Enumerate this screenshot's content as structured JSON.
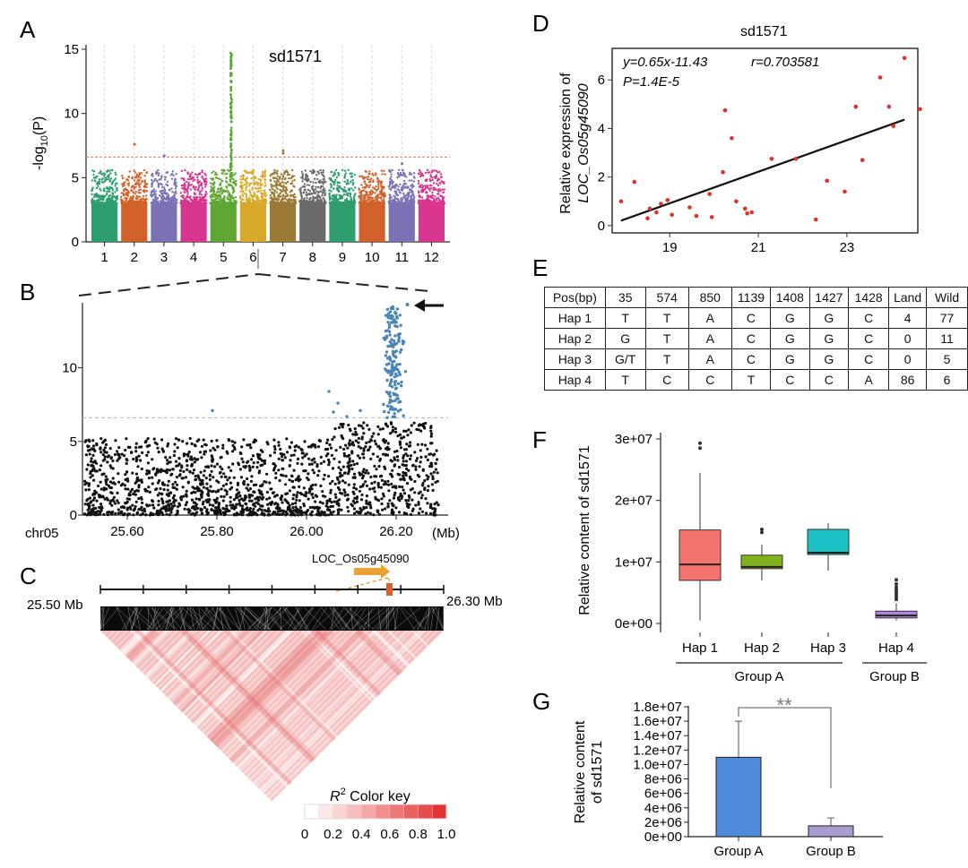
{
  "panel_labels": [
    "A",
    "B",
    "C",
    "D",
    "E",
    "F",
    "G"
  ],
  "panel_a": {
    "title": "sd1571",
    "ylabel_prefix": "-log",
    "ylabel_sub": "10",
    "ylabel_suffix": "(P)",
    "yticks": [
      "15",
      "10",
      "5",
      "0"
    ],
    "chromosomes": [
      "1",
      "2",
      "3",
      "4",
      "5",
      "6",
      "7",
      "8",
      "9",
      "10",
      "11",
      "12"
    ],
    "colors": [
      "#2e9e6e",
      "#d2622a",
      "#7b72b6",
      "#d8358f",
      "#5fa632",
      "#d8a928",
      "#9a7a33",
      "#6a6a6a",
      "#2e9e6e",
      "#d2622a",
      "#7b72b6",
      "#d8358f"
    ],
    "threshold": 6.6
  },
  "panel_b": {
    "yticks": [
      "10",
      "5",
      "0"
    ],
    "xtick_labels": [
      "25.60",
      "25.80",
      "26.00",
      "26.20"
    ],
    "chr_label": "chr05",
    "unit_label": "(Mb)",
    "threshold": 6.6,
    "sig_color": "#4a86b8"
  },
  "panel_c": {
    "gene_label": "LOC_Os05g45090",
    "left_label": "25.50 Mb",
    "right_label": "26.30 Mb",
    "key_title_base": "R",
    "key_title_sup": "2",
    "key_title_rest": " Color key",
    "key_ticks": [
      "0",
      "0.2",
      "0.4",
      "0.6",
      "0.8",
      "1.0"
    ]
  },
  "chart_data": [
    {
      "type": "scatter",
      "panel": "D",
      "title": "sd1571",
      "xlabel": "",
      "ylabel_line1": "Relative expression of",
      "ylabel_line2": "LOC_Os05g45090",
      "equation": "y=0.65x-11.43",
      "r_text": "r=0.703581",
      "p_text": "P=1.4E-5",
      "xticks": [
        "19",
        "21",
        "23"
      ],
      "yticks": [
        "0",
        "2",
        "4",
        "6"
      ],
      "xlim": [
        17.7,
        24.6
      ],
      "ylim": [
        -0.3,
        7.3
      ],
      "fit": {
        "slope": 0.65,
        "intercept": -11.43,
        "x_range": [
          17.9,
          24.3
        ]
      },
      "point_color": "#e0302a",
      "points": [
        [
          17.9,
          1.0
        ],
        [
          18.2,
          1.8
        ],
        [
          18.5,
          0.3
        ],
        [
          18.55,
          0.7
        ],
        [
          18.7,
          0.55
        ],
        [
          18.8,
          0.9
        ],
        [
          18.95,
          1.05
        ],
        [
          19.05,
          0.45
        ],
        [
          19.45,
          0.75
        ],
        [
          19.6,
          0.4
        ],
        [
          19.9,
          1.3
        ],
        [
          19.95,
          0.35
        ],
        [
          20.2,
          2.2
        ],
        [
          20.25,
          4.75
        ],
        [
          20.4,
          3.6
        ],
        [
          20.5,
          1.0
        ],
        [
          20.7,
          0.7
        ],
        [
          20.75,
          0.5
        ],
        [
          20.85,
          0.55
        ],
        [
          21.3,
          2.75
        ],
        [
          21.85,
          2.75
        ],
        [
          22.3,
          0.25
        ],
        [
          22.55,
          1.85
        ],
        [
          22.95,
          1.4
        ],
        [
          23.2,
          4.9
        ],
        [
          23.35,
          2.7
        ],
        [
          23.75,
          6.1
        ],
        [
          23.95,
          4.9
        ],
        [
          24.05,
          4.1
        ],
        [
          24.3,
          6.9
        ],
        [
          24.65,
          4.8
        ]
      ]
    },
    {
      "type": "table",
      "panel": "E",
      "columns": [
        "Pos(bp)",
        "35",
        "574",
        "850",
        "1139",
        "1408",
        "1427",
        "1428",
        "Land",
        "Wild"
      ],
      "rows": [
        [
          "Hap 1",
          "T",
          "T",
          "A",
          "C",
          "G",
          "G",
          "C",
          "4",
          "77"
        ],
        [
          "Hap 2",
          "G",
          "T",
          "A",
          "C",
          "G",
          "G",
          "C",
          "0",
          "11"
        ],
        [
          "Hap 3",
          "G/T",
          "T",
          "A",
          "C",
          "G",
          "G",
          "C",
          "0",
          "5"
        ],
        [
          "Hap 4",
          "T",
          "C",
          "C",
          "T",
          "C",
          "C",
          "A",
          "86",
          "6"
        ]
      ]
    },
    {
      "type": "box",
      "panel": "F",
      "ylabel": "Relative content of sd1571",
      "yticks": [
        "0e+00",
        "1e+07",
        "2e+07",
        "3e+07"
      ],
      "ylim": [
        -1000000,
        31000000
      ],
      "categories": [
        "Hap 1",
        "Hap 2",
        "Hap 3",
        "Hap 4"
      ],
      "groups": [
        {
          "name": "Group  A",
          "members": [
            "Hap 1",
            "Hap 2",
            "Hap 3"
          ]
        },
        {
          "name": "Group  B",
          "members": [
            "Hap 4"
          ]
        }
      ],
      "boxes": [
        {
          "name": "Hap 1",
          "color": "#f4736e",
          "whisker_low": 500000,
          "q1": 7000000,
          "median": 9600000,
          "q3": 15200000,
          "whisker_high": 24500000,
          "outliers": [
            28500000,
            29300000
          ]
        },
        {
          "name": "Hap 2",
          "color": "#7fb21c",
          "whisker_low": 7000000,
          "q1": 8900000,
          "median": 9200000,
          "q3": 11100000,
          "whisker_high": 12800000,
          "outliers": [
            14800000,
            15300000
          ]
        },
        {
          "name": "Hap 3",
          "color": "#1cbfc4",
          "whisker_low": 8600000,
          "q1": 11200000,
          "median": 11500000,
          "q3": 15300000,
          "whisker_high": 16300000,
          "outliers": []
        },
        {
          "name": "Hap 4",
          "color": "#b284e0",
          "whisker_low": 500000,
          "q1": 900000,
          "median": 1300000,
          "q3": 2000000,
          "whisker_high": 3300000,
          "outliers": [
            3900000,
            4300000,
            4700000,
            5100000,
            5500000,
            5900000,
            6400000,
            7100000
          ]
        }
      ]
    },
    {
      "type": "bar",
      "panel": "G",
      "ylabel_line1": "Relative content",
      "ylabel_line2": "of sd1571",
      "categories": [
        "Group  A",
        "Group  B"
      ],
      "values": [
        11000000,
        1500000
      ],
      "errors": [
        5000000,
        1100000
      ],
      "colors": [
        "#4f8bd8",
        "#a99ccf"
      ],
      "ylim": [
        0,
        18000000
      ],
      "yticks": [
        "0e+00",
        "2e+06",
        "4e+06",
        "6e+06",
        "8e+06",
        "1.0e+07",
        "1.2e+07",
        "1.4e+07",
        "1.6e+07",
        "1.8e+07"
      ],
      "significance": "**"
    }
  ]
}
